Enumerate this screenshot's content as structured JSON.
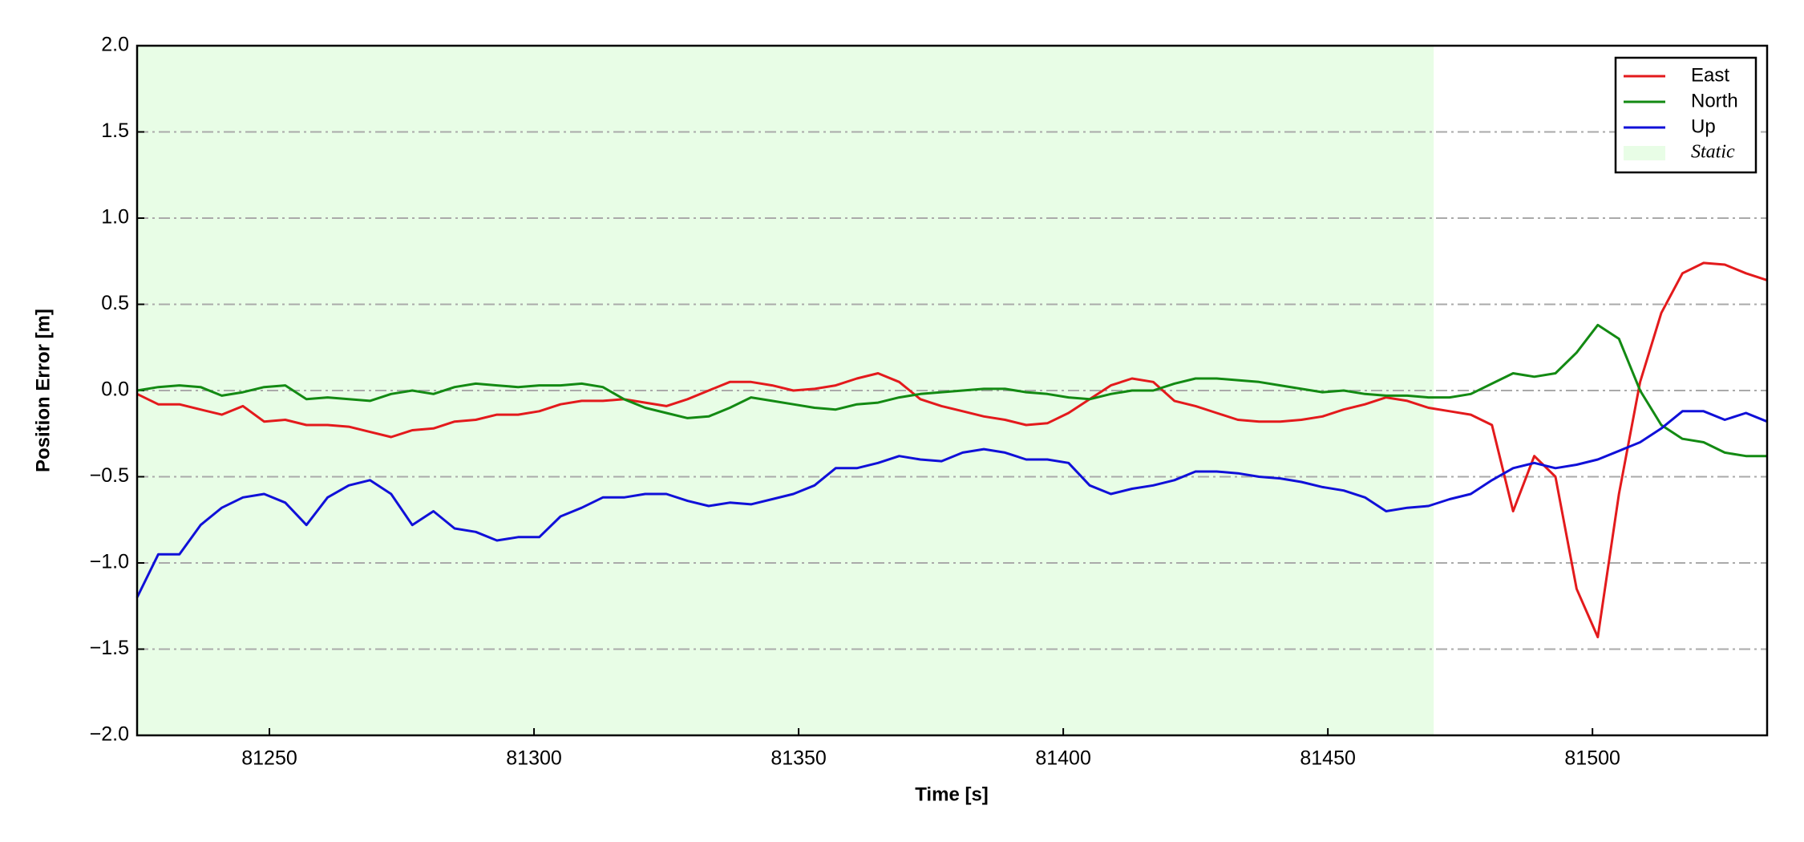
{
  "chart_data": {
    "type": "line",
    "xlabel": "Time [s]",
    "ylabel": "Position Error [m]",
    "x": [
      81225,
      81229,
      81233,
      81237,
      81241,
      81245,
      81249,
      81253,
      81257,
      81261,
      81265,
      81269,
      81273,
      81277,
      81281,
      81285,
      81289,
      81293,
      81297,
      81301,
      81305,
      81309,
      81313,
      81317,
      81321,
      81325,
      81329,
      81333,
      81337,
      81341,
      81345,
      81349,
      81353,
      81357,
      81361,
      81365,
      81369,
      81373,
      81377,
      81381,
      81385,
      81389,
      81393,
      81397,
      81401,
      81405,
      81409,
      81413,
      81417,
      81421,
      81425,
      81429,
      81433,
      81437,
      81441,
      81445,
      81449,
      81453,
      81457,
      81461,
      81465,
      81469,
      81473,
      81477,
      81481,
      81485,
      81489,
      81493,
      81497,
      81501,
      81505,
      81509,
      81513,
      81517,
      81521,
      81525,
      81529,
      81533
    ],
    "series": [
      {
        "name": "East",
        "color": "#e31a1c",
        "values": [
          -0.02,
          -0.08,
          -0.08,
          -0.11,
          -0.14,
          -0.09,
          -0.18,
          -0.17,
          -0.2,
          -0.2,
          -0.21,
          -0.24,
          -0.27,
          -0.23,
          -0.22,
          -0.18,
          -0.17,
          -0.14,
          -0.14,
          -0.12,
          -0.08,
          -0.06,
          -0.06,
          -0.05,
          -0.07,
          -0.09,
          -0.05,
          0.0,
          0.05,
          0.05,
          0.03,
          0.0,
          0.01,
          0.03,
          0.07,
          0.1,
          0.05,
          -0.05,
          -0.09,
          -0.12,
          -0.15,
          -0.17,
          -0.2,
          -0.19,
          -0.13,
          -0.05,
          0.03,
          0.07,
          0.05,
          -0.06,
          -0.09,
          -0.13,
          -0.17,
          -0.18,
          -0.18,
          -0.17,
          -0.15,
          -0.11,
          -0.08,
          -0.04,
          -0.06,
          -0.1,
          -0.12,
          -0.14,
          -0.2,
          -0.7,
          -0.38,
          -0.5,
          -1.15,
          -1.43,
          -0.6,
          0.05,
          0.45,
          0.68,
          0.74,
          0.73,
          0.68,
          0.64
        ]
      },
      {
        "name": "North",
        "color": "#138a13",
        "values": [
          0.0,
          0.02,
          0.03,
          0.02,
          -0.03,
          -0.01,
          0.02,
          0.03,
          -0.05,
          -0.04,
          -0.05,
          -0.06,
          -0.02,
          0.0,
          -0.02,
          0.02,
          0.04,
          0.03,
          0.02,
          0.03,
          0.03,
          0.04,
          0.02,
          -0.05,
          -0.1,
          -0.13,
          -0.16,
          -0.15,
          -0.1,
          -0.04,
          -0.06,
          -0.08,
          -0.1,
          -0.11,
          -0.08,
          -0.07,
          -0.04,
          -0.02,
          -0.01,
          0.0,
          0.01,
          0.01,
          -0.01,
          -0.02,
          -0.04,
          -0.05,
          -0.02,
          0.0,
          0.0,
          0.04,
          0.07,
          0.07,
          0.06,
          0.05,
          0.03,
          0.01,
          -0.01,
          0.0,
          -0.02,
          -0.03,
          -0.03,
          -0.04,
          -0.04,
          -0.02,
          0.04,
          0.1,
          0.08,
          0.1,
          0.22,
          0.38,
          0.3,
          0.0,
          -0.2,
          -0.28,
          -0.3,
          -0.36,
          -0.38,
          -0.38
        ]
      },
      {
        "name": "Up",
        "color": "#1010d8",
        "values": [
          -1.2,
          -0.95,
          -0.95,
          -0.78,
          -0.68,
          -0.62,
          -0.6,
          -0.65,
          -0.78,
          -0.62,
          -0.55,
          -0.52,
          -0.6,
          -0.78,
          -0.7,
          -0.8,
          -0.82,
          -0.87,
          -0.85,
          -0.85,
          -0.73,
          -0.68,
          -0.62,
          -0.62,
          -0.6,
          -0.6,
          -0.64,
          -0.67,
          -0.65,
          -0.66,
          -0.63,
          -0.6,
          -0.55,
          -0.45,
          -0.45,
          -0.42,
          -0.38,
          -0.4,
          -0.41,
          -0.36,
          -0.34,
          -0.36,
          -0.4,
          -0.4,
          -0.42,
          -0.55,
          -0.6,
          -0.57,
          -0.55,
          -0.52,
          -0.47,
          -0.47,
          -0.48,
          -0.5,
          -0.51,
          -0.53,
          -0.56,
          -0.58,
          -0.62,
          -0.7,
          -0.68,
          -0.67,
          -0.63,
          -0.6,
          -0.52,
          -0.45,
          -0.42,
          -0.45,
          -0.43,
          -0.4,
          -0.35,
          -0.3,
          -0.22,
          -0.12,
          -0.12,
          -0.17,
          -0.13,
          -0.18
        ]
      }
    ],
    "spans": [
      {
        "name": "Static",
        "color": "#e8fde6",
        "xmin": 81225,
        "xmax": 81470
      }
    ],
    "xlim": [
      81225,
      81533
    ],
    "xticks": [
      81250,
      81300,
      81350,
      81400,
      81450,
      81500
    ],
    "ylim": [
      -2,
      2
    ],
    "yticks": [
      {
        "value": -2,
        "label": "−2.0"
      },
      {
        "value": -1.5,
        "label": "−1.5"
      },
      {
        "value": -1,
        "label": "−1.0"
      },
      {
        "value": -0.5,
        "label": "−0.5"
      },
      {
        "value": 0,
        "label": "0.0"
      },
      0.5,
      {
        "value": 1,
        "label": "1.0"
      },
      1.5,
      {
        "value": 2,
        "label": "2.0"
      }
    ],
    "grid": true,
    "legend": "upper right"
  }
}
